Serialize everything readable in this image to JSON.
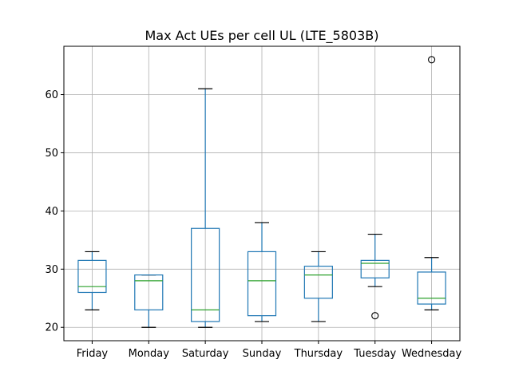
{
  "chart_data": {
    "type": "box",
    "title": "Max Act UEs per cell UL (LTE_5803B)",
    "xlabel": "",
    "ylabel": "",
    "categories": [
      "Friday",
      "Monday",
      "Saturday",
      "Sunday",
      "Thursday",
      "Tuesday",
      "Wednesday"
    ],
    "boxes": [
      {
        "category": "Friday",
        "whisker_low": 23,
        "q1": 26,
        "median": 27,
        "q3": 31.5,
        "whisker_high": 33,
        "outliers": []
      },
      {
        "category": "Monday",
        "whisker_low": 20,
        "q1": 23,
        "median": 28,
        "q3": 29,
        "whisker_high": 29,
        "outliers": []
      },
      {
        "category": "Saturday",
        "whisker_low": 20,
        "q1": 21,
        "median": 23,
        "q3": 37,
        "whisker_high": 61,
        "outliers": []
      },
      {
        "category": "Sunday",
        "whisker_low": 21,
        "q1": 22,
        "median": 28,
        "q3": 33,
        "whisker_high": 38,
        "outliers": []
      },
      {
        "category": "Thursday",
        "whisker_low": 21,
        "q1": 25,
        "median": 29,
        "q3": 30.5,
        "whisker_high": 33,
        "outliers": []
      },
      {
        "category": "Tuesday",
        "whisker_low": 27,
        "q1": 28.5,
        "median": 31,
        "q3": 31.5,
        "whisker_high": 36,
        "outliers": [
          22
        ]
      },
      {
        "category": "Wednesday",
        "whisker_low": 23,
        "q1": 24,
        "median": 25,
        "q3": 29.5,
        "whisker_high": 32,
        "outliers": [
          66
        ]
      }
    ],
    "yticks": [
      20,
      30,
      40,
      50,
      60
    ],
    "ylim": [
      17.7,
      68.3
    ],
    "grid": true,
    "colors": {
      "box": "#1f77b4",
      "median": "#2ca02c",
      "grid": "#b0b0b0",
      "axis": "#000000",
      "outlier": "#000000"
    }
  }
}
